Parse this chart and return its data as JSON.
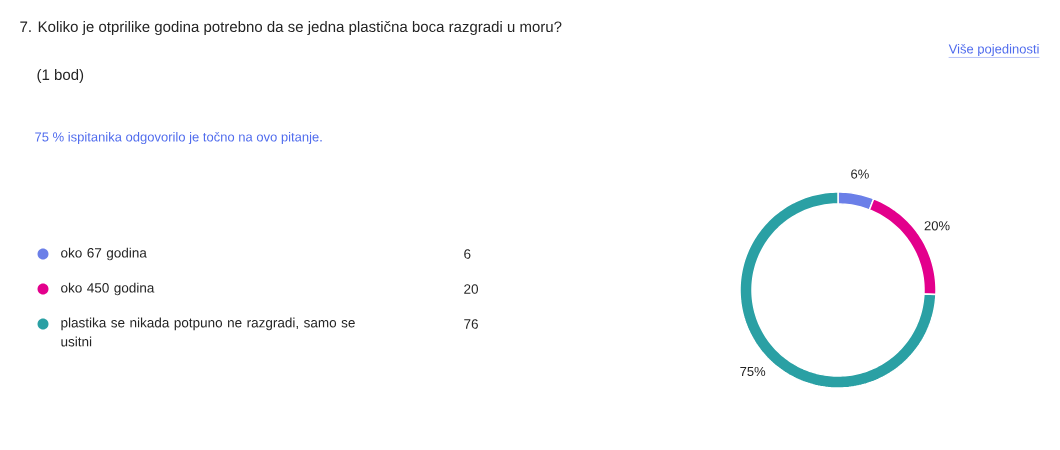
{
  "chart_data": {
    "type": "donut",
    "title": "7. Koliko je otprilike godina potrebno da se jedna plastična boca razgradi u moru?",
    "subtitle": "(1 bod)",
    "categories": [
      "oko 67 godina",
      "oko 450 godina",
      "plastika se nikada potpuno ne razgradi, samo se usitni"
    ],
    "values": [
      6,
      20,
      75
    ],
    "colors": [
      "#6b7fe8",
      "#e3008c",
      "#2aa0a4"
    ],
    "value_labels": [
      "6%",
      "20%",
      "75%"
    ],
    "legend": "left",
    "annotations": [
      "75 % ispitanika odgovorilo je točno na ovo pitanje.",
      "Više pojedinosti",
      "6",
      "20",
      "76"
    ]
  }
}
